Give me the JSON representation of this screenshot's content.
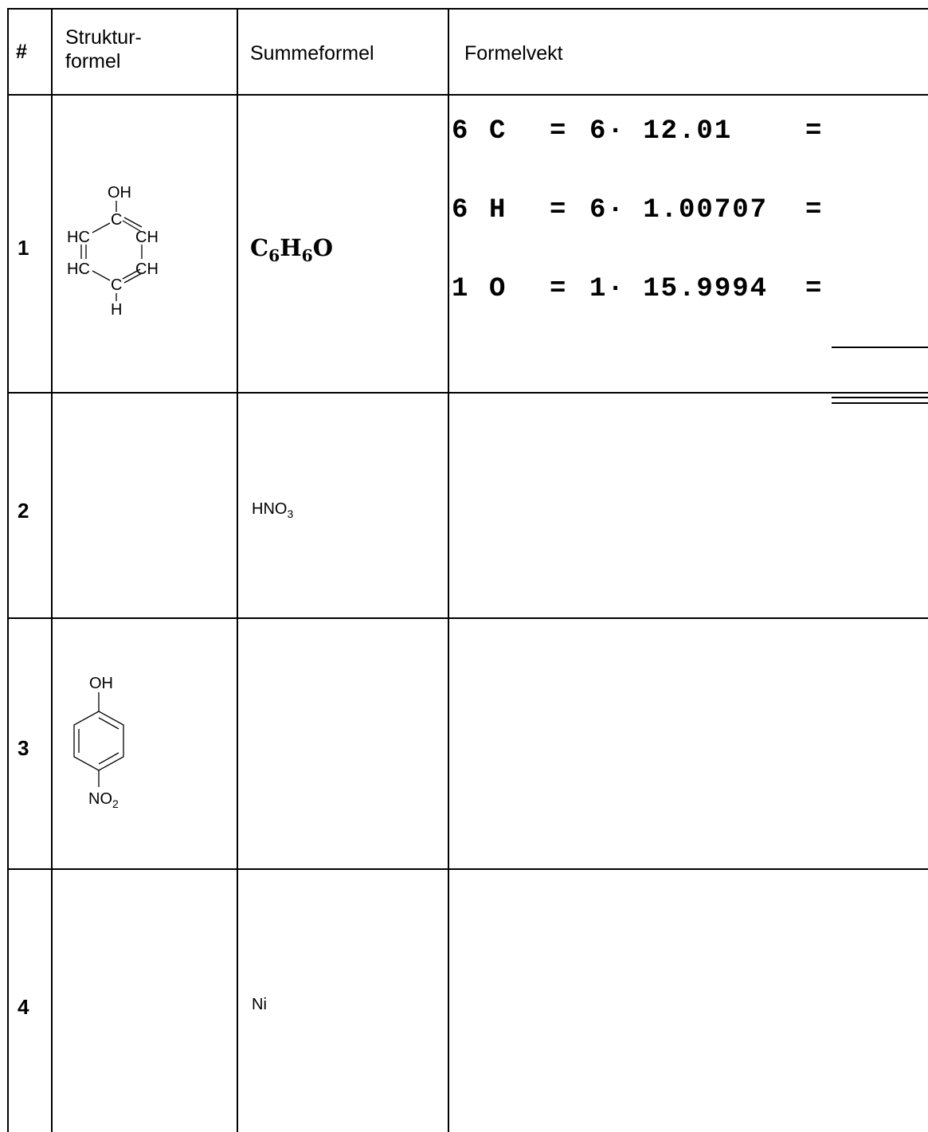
{
  "table": {
    "headers": {
      "num": "#",
      "structure_line1": "Struktur-",
      "structure_line2": "formel",
      "sum": "Summeformel",
      "weight": "Formelvekt"
    },
    "rows": [
      {
        "num": "1",
        "sum_parts": [
          "C",
          "6",
          "H",
          "6",
          "O"
        ],
        "calc": [
          {
            "count": "6",
            "el": "C",
            "expr": "6· 12.01",
            "eq": "="
          },
          {
            "count": "6",
            "el": "H",
            "expr": "6· 1.00707",
            "eq": "="
          },
          {
            "count": "1",
            "el": "O",
            "expr": "1· 15.9994",
            "eq": "="
          }
        ],
        "structure_labels": {
          "oh": "OH",
          "c_top": "C",
          "hc_left_top": "HC",
          "ch_right_top": "CH",
          "hc_left_bot": "HC",
          "ch_right_bot": "CH",
          "c_bot": "C",
          "h": "H"
        }
      },
      {
        "num": "2",
        "sum_parts": [
          "HNO",
          "3"
        ]
      },
      {
        "num": "3",
        "structure_labels": {
          "oh": "OH",
          "no2": "NO",
          "no2_sub": "2"
        }
      },
      {
        "num": "4",
        "sum_parts": [
          "Ni"
        ]
      }
    ]
  }
}
